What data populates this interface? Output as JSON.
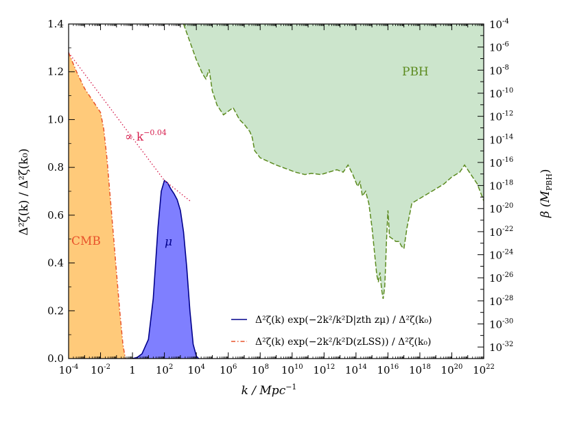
{
  "chart_data": {
    "type": "area",
    "xscale": "log",
    "xlim": [
      0.0001,
      1e+22
    ],
    "ylim": [
      0,
      1.4
    ],
    "y2scale": "log",
    "y2lim": [
      1e-33,
      0.0001
    ],
    "x_ticks": [
      {
        "base": "10",
        "exp": "-4"
      },
      {
        "base": "10",
        "exp": "-2"
      },
      {
        "base": "1",
        "exp": ""
      },
      {
        "base": "10",
        "exp": "2"
      },
      {
        "base": "10",
        "exp": "4"
      },
      {
        "base": "10",
        "exp": "6"
      },
      {
        "base": "10",
        "exp": "8"
      },
      {
        "base": "10",
        "exp": "10"
      },
      {
        "base": "10",
        "exp": "12"
      },
      {
        "base": "10",
        "exp": "14"
      },
      {
        "base": "10",
        "exp": "16"
      },
      {
        "base": "10",
        "exp": "18"
      },
      {
        "base": "10",
        "exp": "20"
      },
      {
        "base": "10",
        "exp": "22"
      }
    ],
    "y_ticks": [
      "0.0",
      "0.2",
      "0.4",
      "0.6",
      "0.8",
      "1.0",
      "1.2",
      "1.4"
    ],
    "y2_ticks": [
      "-4",
      "-6",
      "-8",
      "-10",
      "-12",
      "-14",
      "-16",
      "-18",
      "-20",
      "-22",
      "-24",
      "-26",
      "-28",
      "-30",
      "-32"
    ],
    "labels": {
      "xlabel_main": "k / Mpc",
      "xlabel_exp": "−1",
      "ylabel": "Δ²ζ(k) / Δ²ζ(k₀)",
      "y2label": "β (M",
      "y2label_sub": "PBH",
      "y2label_close": ")",
      "cmb": "CMB",
      "mu": "μ",
      "pbh": "PBH",
      "power_law": "∝ k",
      "power_law_exp": "−0.04",
      "y2_tick_base": "10"
    },
    "series": [
      {
        "name": "Δ²ζ(k) exp(−2k²/k²D|zth zμ) / Δ²ζ(k₀)",
        "kind": "mu",
        "color": "#00008b",
        "fill": "#7f7fff",
        "logk": [
          0,
          0.3,
          0.6,
          1.0,
          1.3,
          1.6,
          1.8,
          2.0,
          2.2,
          2.4,
          2.6,
          2.8,
          3.0,
          3.2,
          3.4,
          3.6,
          3.8,
          4.0,
          4.15
        ],
        "y": [
          0,
          0.005,
          0.02,
          0.08,
          0.25,
          0.55,
          0.7,
          0.745,
          0.735,
          0.71,
          0.69,
          0.665,
          0.62,
          0.53,
          0.38,
          0.2,
          0.06,
          0.01,
          0
        ]
      },
      {
        "name": "Δ²ζ(k) exp(−2k²/k²D(zLSS)) / Δ²ζ(k₀)",
        "kind": "cmb",
        "color": "#e8522a",
        "fill": "#ffca7a",
        "logk": [
          -4,
          -3.5,
          -3,
          -2.5,
          -2,
          -1.8,
          -1.6,
          -1.4,
          -1.2,
          -1.0,
          -0.8,
          -0.6,
          -0.45
        ],
        "y": [
          1.28,
          1.2,
          1.13,
          1.08,
          1.03,
          0.96,
          0.84,
          0.68,
          0.52,
          0.36,
          0.2,
          0.06,
          0
        ]
      },
      {
        "kind": "power_law",
        "color": "#d6204f",
        "logk": [
          -4,
          2.0,
          3.6
        ],
        "y": [
          1.28,
          0.745,
          0.66
        ]
      },
      {
        "kind": "pbh",
        "color": "#5b8a1e",
        "fill": "#cce5cc",
        "logk": [
          3.2,
          4.0,
          4.4,
          4.6,
          4.8,
          5.0,
          5.3,
          5.7,
          6.3,
          6.7,
          7.0,
          7.35,
          7.5,
          7.65,
          8.0,
          9.0,
          9.8,
          10.2,
          10.8,
          11.2,
          11.8,
          12.3,
          12.8,
          13.2,
          13.5,
          13.8,
          14.1,
          14.25,
          14.4,
          14.6,
          14.8,
          15.0,
          15.3,
          15.4,
          15.5,
          15.6,
          15.7,
          15.8,
          15.85,
          15.9,
          16.0,
          16.1,
          16.3,
          16.5,
          16.7,
          16.85,
          17.0,
          17.2,
          17.5,
          18.0,
          18.5,
          19.0,
          19.5,
          20.0,
          20.5,
          20.8,
          21.2,
          21.6,
          22.0
        ],
        "y": [
          1.4,
          1.25,
          1.19,
          1.17,
          1.21,
          1.12,
          1.06,
          1.02,
          1.05,
          1.0,
          0.98,
          0.95,
          0.925,
          0.87,
          0.84,
          0.81,
          0.79,
          0.78,
          0.77,
          0.775,
          0.77,
          0.78,
          0.79,
          0.78,
          0.81,
          0.77,
          0.72,
          0.74,
          0.68,
          0.7,
          0.65,
          0.55,
          0.35,
          0.32,
          0.36,
          0.29,
          0.25,
          0.3,
          0.38,
          0.48,
          0.62,
          0.51,
          0.5,
          0.49,
          0.49,
          0.47,
          0.46,
          0.55,
          0.65,
          0.67,
          0.69,
          0.71,
          0.73,
          0.76,
          0.78,
          0.81,
          0.77,
          0.73,
          0.66
        ]
      }
    ],
    "legend_position": "lower-right",
    "grid": false
  }
}
